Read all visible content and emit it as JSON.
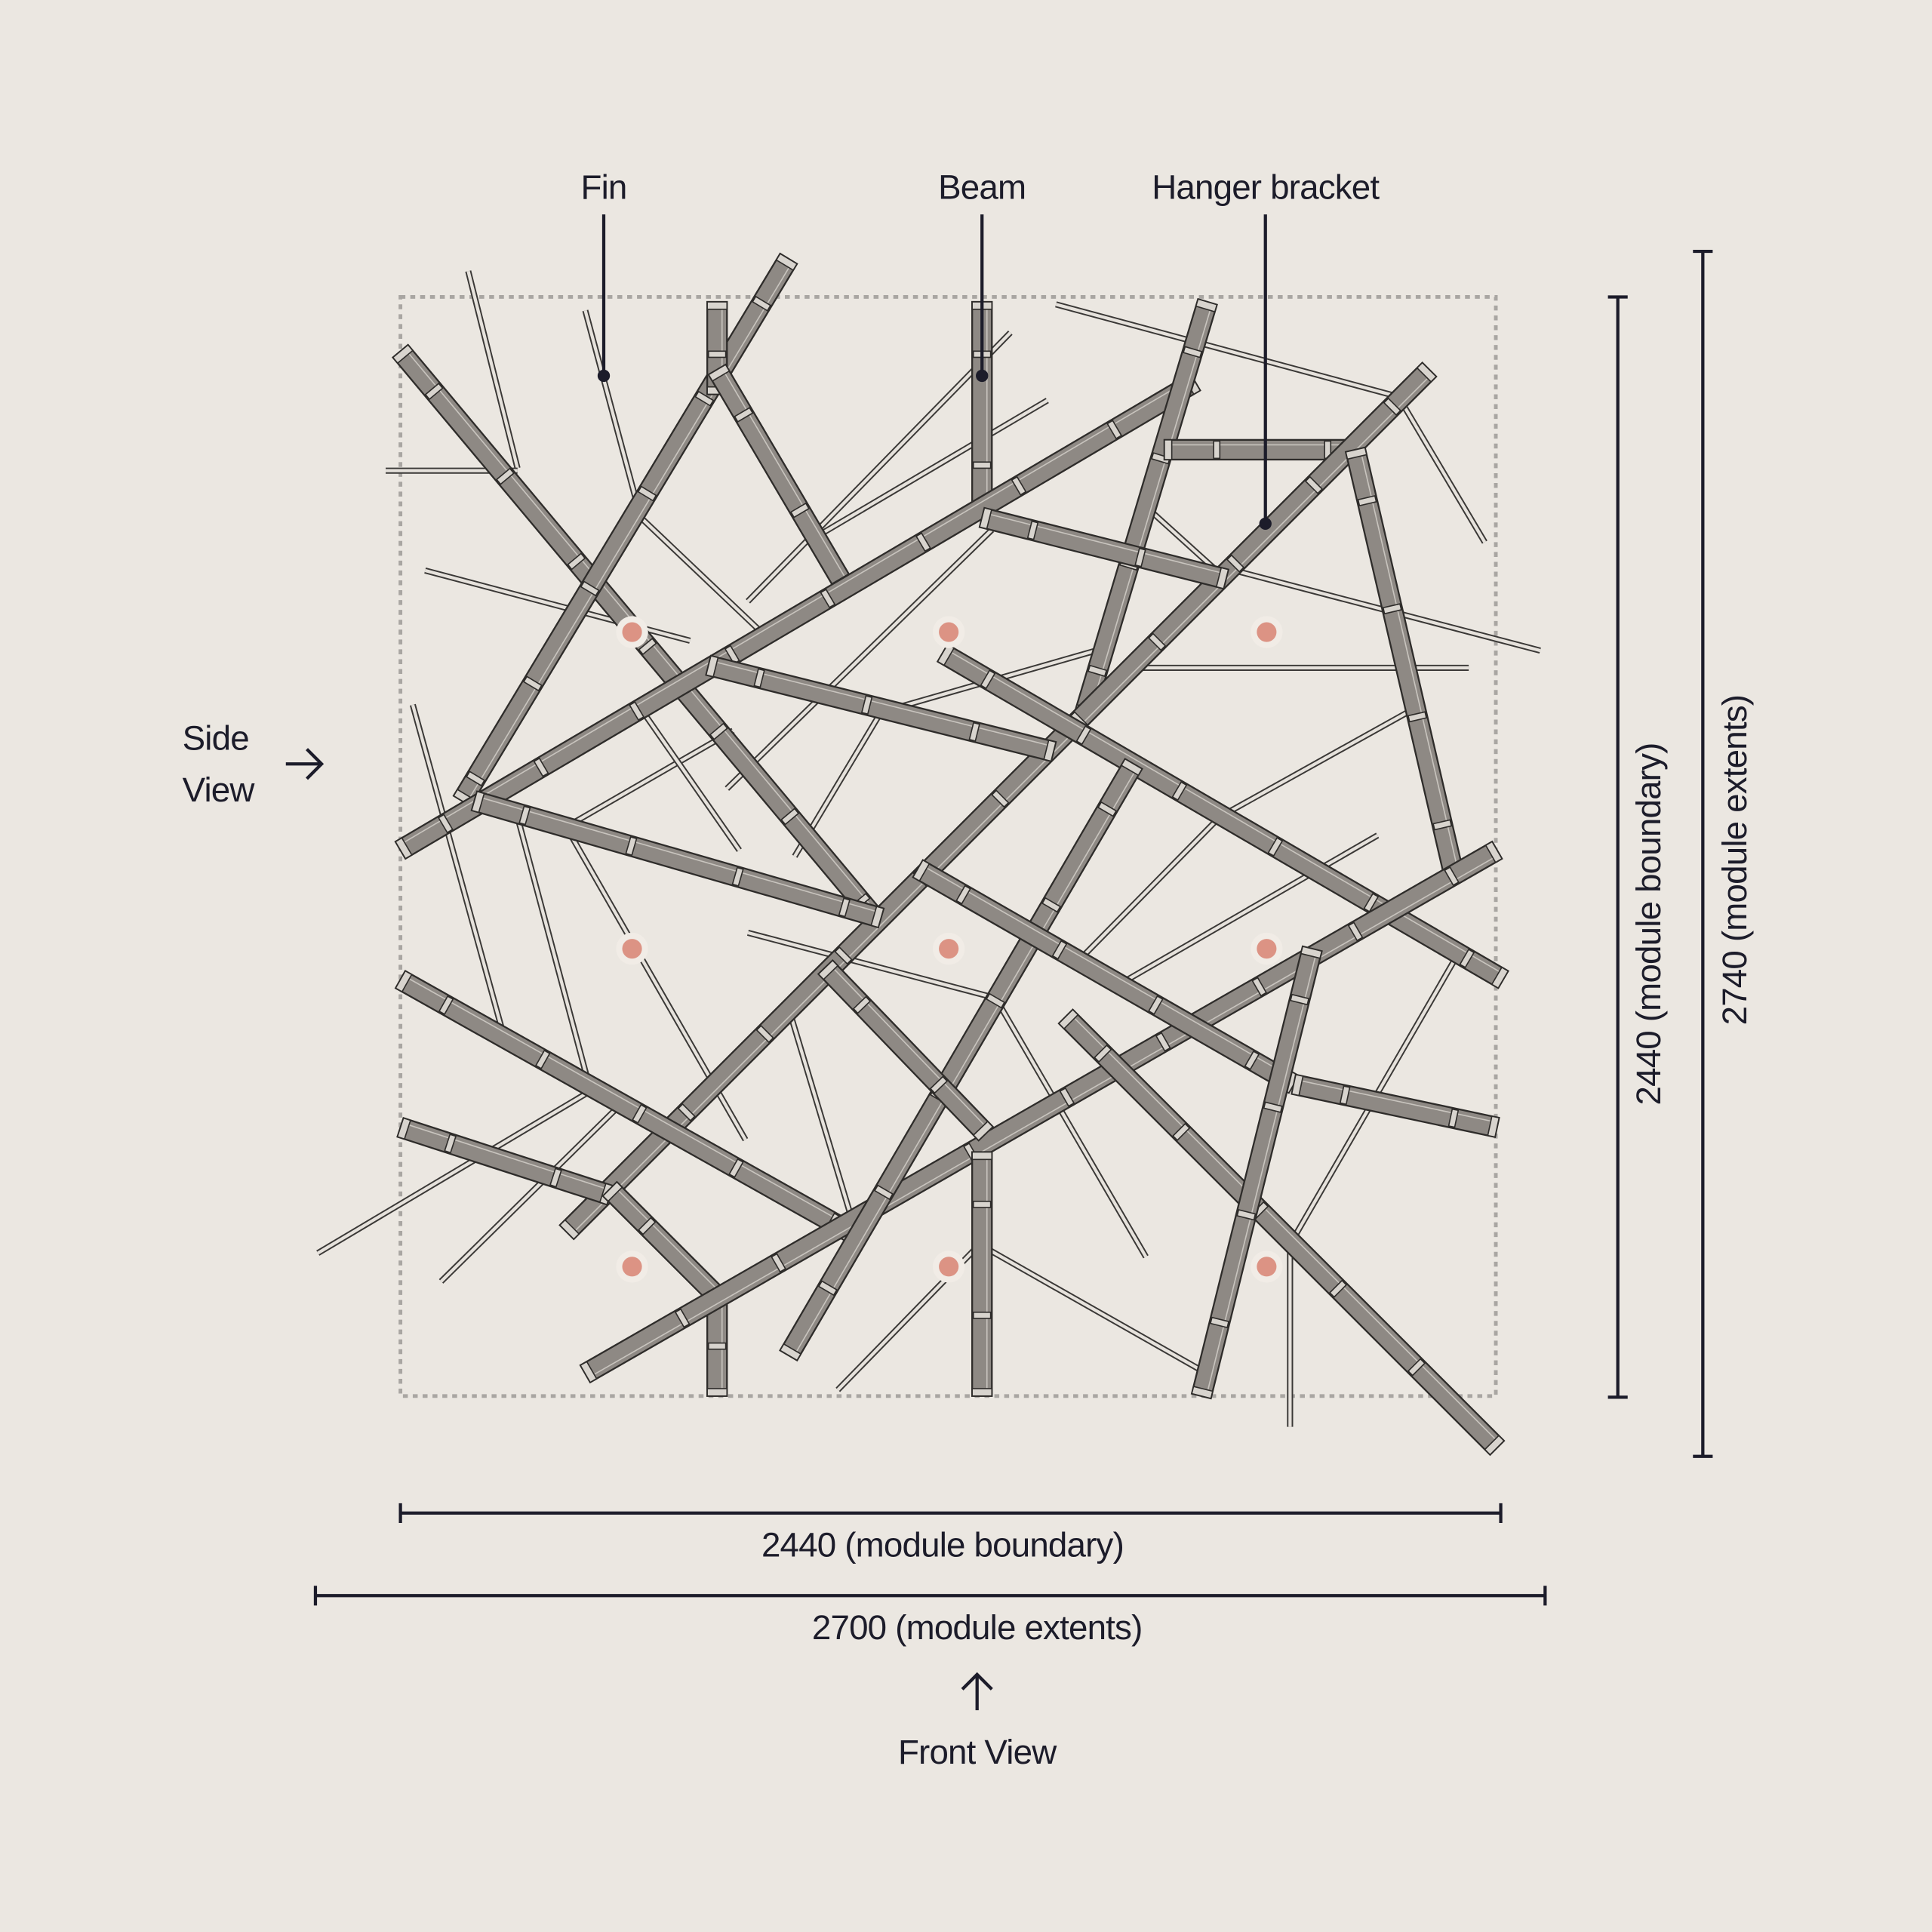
{
  "callouts": [
    {
      "label": "Fin"
    },
    {
      "label": "Beam"
    },
    {
      "label": "Hanger bracket"
    }
  ],
  "side_view": [
    "Side",
    "View"
  ],
  "front_view": "Front View",
  "dimensions": {
    "width_boundary": "2440 (module boundary)",
    "width_extents": "2700 (module extents)",
    "height_boundary": "2440 (module boundary)",
    "height_extents": "2740 (module extents)"
  }
}
